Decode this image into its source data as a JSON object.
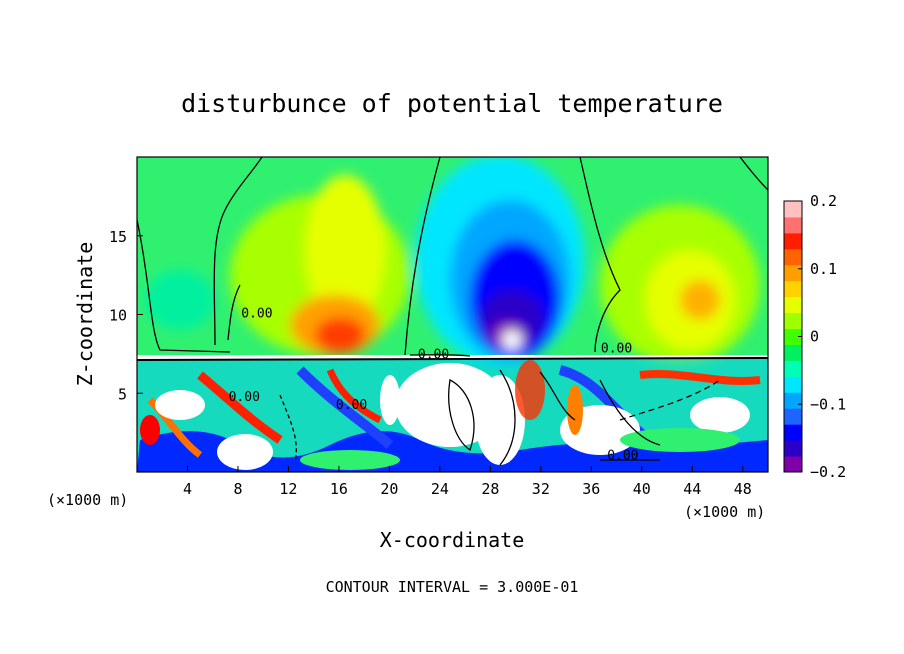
{
  "chart_data": {
    "type": "heatmap",
    "title": "disturbunce of potential temperature",
    "xlabel": "X-coordinate",
    "ylabel": "Z-coordinate",
    "x_unit_left": "(×1000 m)",
    "x_unit_right": "(×1000 m)",
    "footer": "CONTOUR INTERVAL = 3.000E-01",
    "xlim": [
      0,
      50
    ],
    "ylim": [
      0,
      20
    ],
    "x_ticks": [
      4,
      8,
      12,
      16,
      20,
      24,
      28,
      32,
      36,
      40,
      44,
      48
    ],
    "y_ticks": [
      5,
      10,
      15
    ],
    "colorbar": {
      "min": -0.2,
      "max": 0.2,
      "tick_values": [
        0.2,
        0.1,
        0,
        -0.1,
        -0.2
      ],
      "tick_labels": [
        "0.2",
        "0.1",
        "0",
        "−0.1",
        "−0.2"
      ],
      "colors": [
        "#7f00a8",
        "#2a00c8",
        "#0000ff",
        "#1e64ff",
        "#00a6ff",
        "#00e6ff",
        "#00ffb4",
        "#00f060",
        "#40ff00",
        "#a0ff00",
        "#e6ff00",
        "#ffd200",
        "#ffa000",
        "#ff6400",
        "#ff1e00",
        "#ff7070",
        "#ffc0c0"
      ]
    },
    "contour_labels": [
      {
        "text": "0.00",
        "x": 9.5,
        "z": 9.8
      },
      {
        "text": "0.00",
        "x": 23.5,
        "z": 7.2
      },
      {
        "text": "0.00",
        "x": 38,
        "z": 7.6
      },
      {
        "text": "0.00",
        "x": 8.5,
        "z": 4.5
      },
      {
        "text": "0.00",
        "x": 17,
        "z": 4.0
      },
      {
        "text": "0.00",
        "x": 38.5,
        "z": 0.8
      }
    ]
  }
}
